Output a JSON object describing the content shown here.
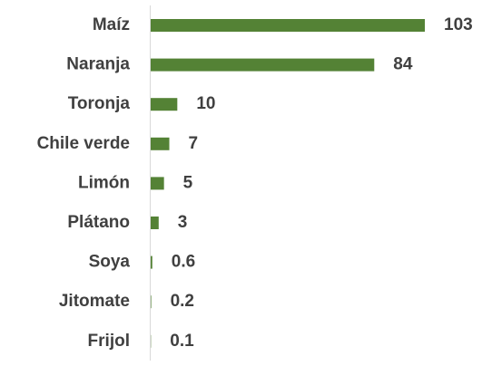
{
  "chart_data": {
    "type": "bar",
    "orientation": "horizontal",
    "categories": [
      "Maíz",
      "Naranja",
      "Toronja",
      "Chile verde",
      "Limón",
      "Plátano",
      "Soya",
      "Jitomate",
      "Frijol"
    ],
    "values": [
      103,
      84,
      10,
      7,
      5,
      3,
      0.6,
      0.2,
      0.1
    ],
    "color": "#548235"
  }
}
